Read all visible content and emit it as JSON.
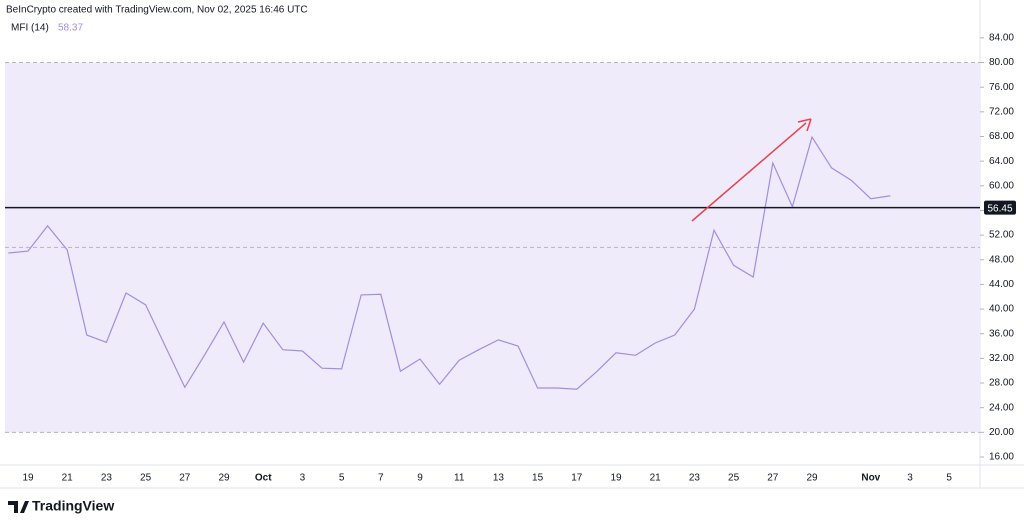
{
  "chart_data": {
    "type": "line",
    "title": "BeInCrypto created with TradingView.com, Nov 02, 2025 16:46 UTC",
    "brand": "TradingView",
    "categories": [
      null,
      "19",
      null,
      "21",
      null,
      "23",
      null,
      "25",
      null,
      "27",
      null,
      "29",
      null,
      "Oct",
      null,
      "3",
      null,
      "5",
      null,
      "7",
      null,
      "9",
      null,
      "11",
      null,
      "13",
      null,
      "15",
      null,
      "17",
      null,
      "19",
      null,
      "21",
      null,
      "23",
      null,
      "25",
      null,
      "27",
      null,
      "29",
      null,
      null,
      "Nov",
      null,
      "3",
      null,
      "5"
    ],
    "series": [
      {
        "name": "MFI (14)",
        "color": "#9f8fe0",
        "values": [
          49.1,
          49.4,
          53.5,
          49.6,
          35.8,
          34.6,
          42.6,
          40.7,
          34.0,
          27.3,
          32.5,
          37.9,
          31.4,
          37.7,
          33.4,
          33.2,
          30.4,
          30.3,
          42.3,
          42.4,
          29.9,
          31.9,
          27.8,
          31.7,
          33.4,
          35.0,
          34.0,
          27.2,
          27.2,
          27.0,
          29.8,
          32.9,
          32.5,
          34.5,
          35.8,
          40.0,
          52.8,
          47.1,
          45.2,
          63.7,
          56.6,
          67.9,
          62.9,
          60.9,
          57.9,
          58.37,
          null,
          null,
          null
        ]
      }
    ],
    "ylim": [
      14.7,
      86.9
    ],
    "yticks": [
      {
        "value": 16,
        "label": "16.00"
      },
      {
        "value": 20,
        "label": "20.00"
      },
      {
        "value": 24,
        "label": "24.00"
      },
      {
        "value": 28,
        "label": "28.00"
      },
      {
        "value": 32,
        "label": "32.00"
      },
      {
        "value": 36,
        "label": "36.00"
      },
      {
        "value": 40,
        "label": "40.00"
      },
      {
        "value": 44,
        "label": "44.00"
      },
      {
        "value": 48,
        "label": "48.00"
      },
      {
        "value": 52,
        "label": "52.00"
      },
      {
        "value": 56,
        "label": "56.00"
      },
      {
        "value": 60,
        "label": "60.00"
      },
      {
        "value": 64,
        "label": "64.00"
      },
      {
        "value": 68,
        "label": "68.00"
      },
      {
        "value": 72,
        "label": "72.00"
      },
      {
        "value": 76,
        "label": "76.00"
      },
      {
        "value": 80,
        "label": "80.00"
      },
      {
        "value": 84,
        "label": "84.00"
      }
    ],
    "band": [
      20,
      80
    ],
    "band_color": "#efebfa",
    "levels": [
      20,
      50,
      80
    ],
    "hline": {
      "value": 56.45,
      "color": "#131722"
    }
  }
}
